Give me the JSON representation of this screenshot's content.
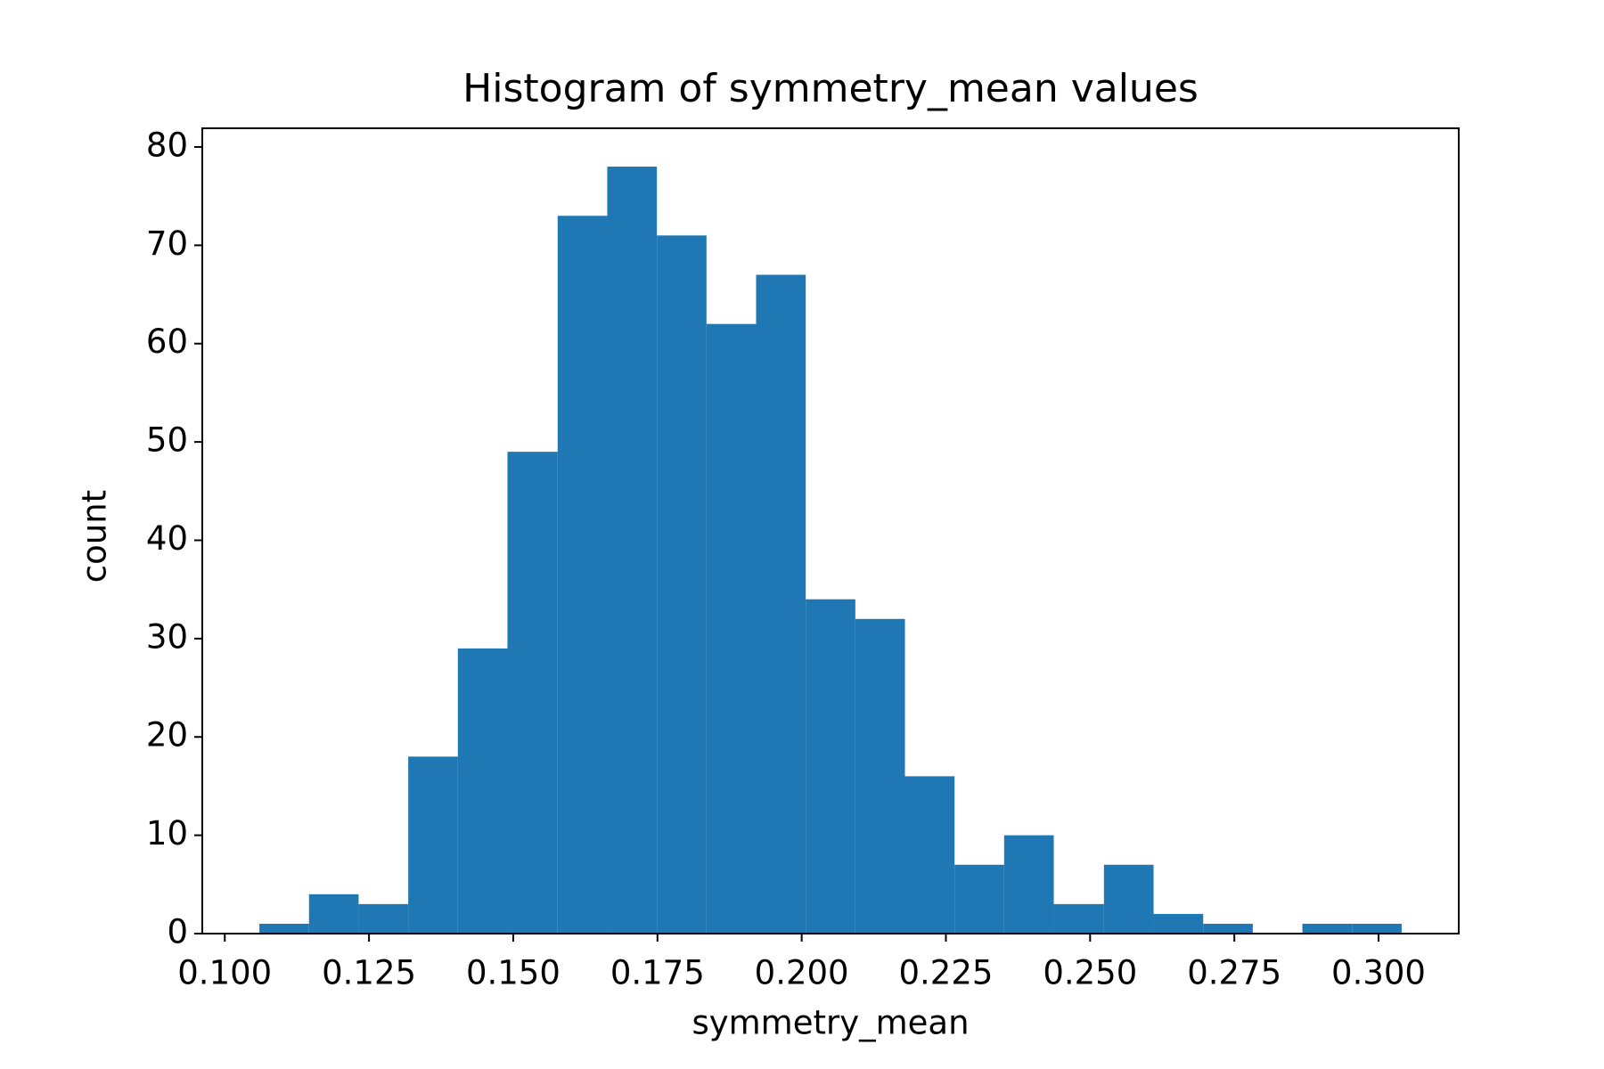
{
  "chart_data": {
    "type": "histogram",
    "title": "Histogram of symmetry_mean values",
    "x_label": "symmetry_mean",
    "y_label": "count",
    "color": "#1f77b4",
    "bins": [
      0.106,
      0.1146,
      0.1232,
      0.1318,
      0.1404,
      0.149,
      0.1577,
      0.1663,
      0.1749,
      0.1835,
      0.1921,
      0.2007,
      0.2093,
      0.2179,
      0.2265,
      0.2351,
      0.2437,
      0.2524,
      0.261,
      0.2696,
      0.2782,
      0.2868,
      0.2954,
      0.304
    ],
    "values": [
      1,
      4,
      3,
      18,
      29,
      49,
      73,
      78,
      71,
      62,
      67,
      34,
      32,
      16,
      7,
      10,
      3,
      7,
      2,
      1,
      0,
      1,
      1
    ],
    "xlim": [
      0.0961,
      0.3139
    ],
    "ylim": [
      0,
      81.9
    ],
    "xticks": [
      {
        "value": 0.1,
        "label": "0.100"
      },
      {
        "value": 0.125,
        "label": "0.125"
      },
      {
        "value": 0.15,
        "label": "0.150"
      },
      {
        "value": 0.175,
        "label": "0.175"
      },
      {
        "value": 0.2,
        "label": "0.200"
      },
      {
        "value": 0.225,
        "label": "0.225"
      },
      {
        "value": 0.25,
        "label": "0.250"
      },
      {
        "value": 0.275,
        "label": "0.275"
      },
      {
        "value": 0.3,
        "label": "0.300"
      }
    ],
    "yticks": [
      0,
      10,
      20,
      30,
      40,
      50,
      60,
      70,
      80
    ]
  }
}
